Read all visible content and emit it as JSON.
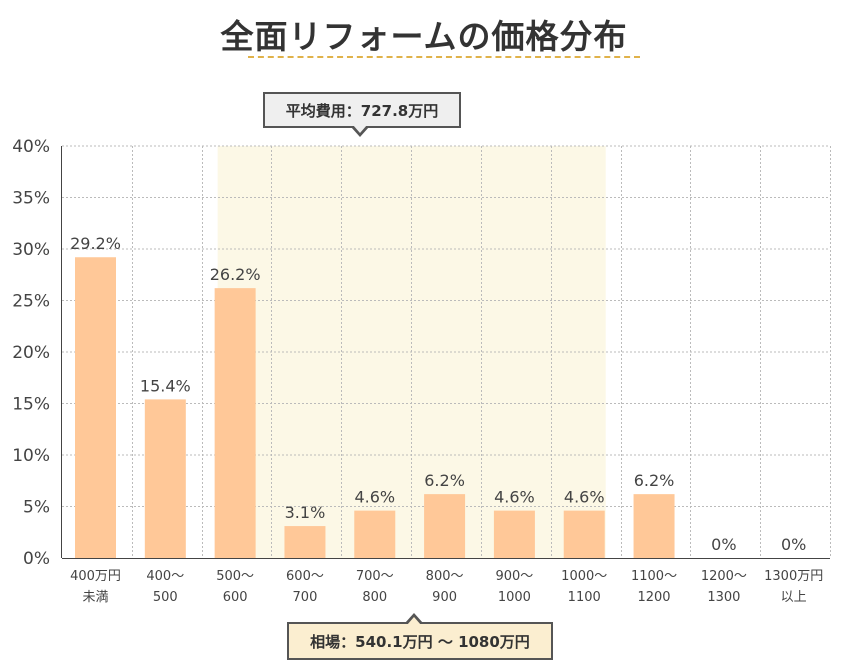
{
  "chart_data": {
    "type": "bar",
    "title": "全面リフォームの価格分布",
    "categories": [
      [
        "400万円",
        "未満"
      ],
      [
        "400～",
        "500"
      ],
      [
        "500～",
        "600"
      ],
      [
        "600～",
        "700"
      ],
      [
        "700～",
        "800"
      ],
      [
        "800～",
        "900"
      ],
      [
        "900～",
        "1000"
      ],
      [
        "1000～",
        "1100"
      ],
      [
        "1100～",
        "1200"
      ],
      [
        "1200～",
        "1300"
      ],
      [
        "1300万円",
        "以上"
      ]
    ],
    "values": [
      29.2,
      15.4,
      26.2,
      3.1,
      4.6,
      6.2,
      4.6,
      4.6,
      6.2,
      0,
      0
    ],
    "data_labels": [
      "29.2%",
      "15.4%",
      "26.2%",
      "3.1%",
      "4.6%",
      "6.2%",
      "4.6%",
      "4.6%",
      "6.2%",
      "0%",
      "0%"
    ],
    "y_ticks": [
      0,
      5,
      10,
      15,
      20,
      25,
      30,
      35,
      40
    ],
    "y_tick_labels": [
      "0%",
      "5%",
      "10%",
      "15%",
      "20%",
      "25%",
      "30%",
      "35%",
      "40%"
    ],
    "ylim": [
      0,
      40
    ],
    "grid": true,
    "highlight_range": {
      "from_category": 2,
      "to_category": 7
    },
    "average_callout": "平均費用：727.8万円",
    "range_callout": "相場：540.1万円 〜 1080万円",
    "colors": {
      "bar": "#ffc898",
      "highlight": "#fcf8e6",
      "grid": "#bbbbbb",
      "axis": "#444444",
      "title_rule": "#e0b24a"
    }
  }
}
